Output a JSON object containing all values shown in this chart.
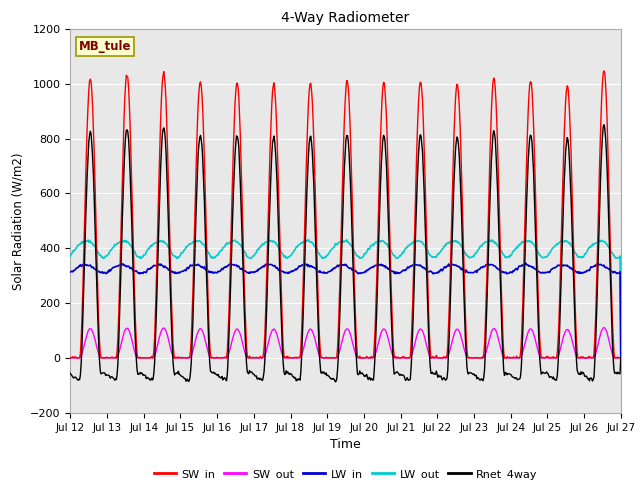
{
  "title": "4-Way Radiometer",
  "xlabel": "Time",
  "ylabel": "Solar Radiation (W/m2)",
  "ylim": [
    -200,
    1200
  ],
  "station_label": "MB_tule",
  "x_tick_labels": [
    "Jul 12",
    "Jul 13",
    "Jul 14",
    "Jul 15",
    "Jul 16",
    "Jul 17",
    "Jul 18",
    "Jul 19",
    "Jul 20",
    "Jul 21",
    "Jul 22",
    "Jul 23",
    "Jul 24",
    "Jul 25",
    "Jul 26",
    "Jul 27"
  ],
  "n_days": 15,
  "colors": {
    "SW_in": "#ff0000",
    "SW_out": "#ff00ff",
    "LW_in": "#0000cc",
    "LW_out": "#00cccc",
    "Rnet_4way": "#000000"
  },
  "line_widths": {
    "SW_in": 1.0,
    "SW_out": 1.0,
    "LW_in": 1.2,
    "LW_out": 1.2,
    "Rnet_4way": 1.0
  },
  "fig_bg_color": "#ffffff",
  "plot_bg_color": "#e8e8e8",
  "grid_color": "#ffffff",
  "yticks": [
    -200,
    0,
    200,
    400,
    600,
    800,
    1000,
    1200
  ]
}
